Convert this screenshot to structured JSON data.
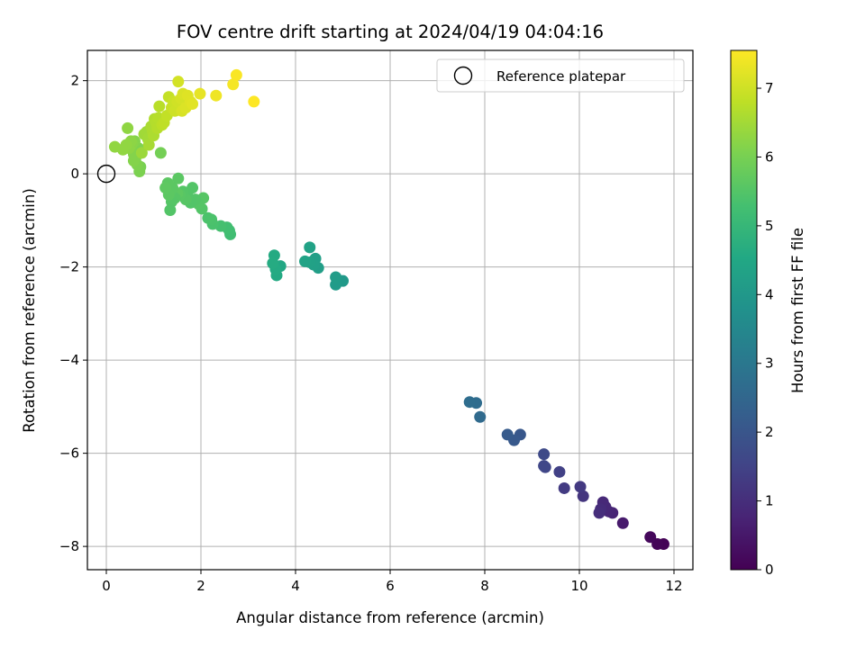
{
  "chart_data": {
    "type": "scatter",
    "title": "FOV centre drift starting at 2024/04/19 04:04:16",
    "xlabel": "Angular distance from reference (arcmin)",
    "ylabel": "Rotation from reference (arcmin)",
    "xlim": [
      -0.4,
      12.4
    ],
    "ylim": [
      -8.5,
      2.65
    ],
    "xticks": [
      0,
      2,
      4,
      6,
      8,
      10,
      12
    ],
    "yticks": [
      2,
      0,
      -2,
      -4,
      -6,
      -8
    ],
    "xtick_labels": [
      "0",
      "2",
      "4",
      "6",
      "8",
      "10",
      "12"
    ],
    "ytick_labels": [
      "2",
      "0",
      "−2",
      "−4",
      "−6",
      "−8"
    ],
    "grid": true,
    "legend": {
      "label": "Reference platepar",
      "placement": "top-right"
    },
    "reference_point": {
      "x": 0,
      "y": 0
    },
    "colorbar": {
      "label": "Hours from first FF file",
      "min": 0,
      "max": 7.55,
      "ticks": [
        0,
        1,
        2,
        3,
        4,
        5,
        6,
        7
      ],
      "tick_labels": [
        "0",
        "1",
        "2",
        "3",
        "4",
        "5",
        "6",
        "7"
      ],
      "colormap": "viridis"
    },
    "series": [
      {
        "x": [
          11.78,
          11.65,
          11.5,
          10.92,
          10.7,
          10.62,
          10.55,
          10.5,
          10.45,
          10.42,
          10.08,
          10.02,
          9.68,
          9.58,
          9.28,
          9.25,
          9.25,
          8.75,
          8.62,
          8.48,
          7.9,
          7.82,
          7.68,
          5.0,
          4.85,
          4.85,
          4.48,
          4.42,
          4.38,
          4.3,
          4.3,
          4.2,
          3.68,
          3.6,
          3.58,
          3.55,
          3.52,
          2.62,
          2.6,
          2.55,
          2.42,
          2.25,
          2.22,
          2.15,
          2.05,
          2.02,
          1.95,
          1.88,
          1.82,
          1.78,
          1.72,
          1.68,
          1.62,
          1.55,
          1.52,
          1.5,
          1.45,
          1.4,
          1.38,
          1.35,
          1.32,
          1.3,
          1.25,
          1.15,
          0.72,
          0.7,
          0.68,
          0.65,
          0.62,
          0.6,
          0.58,
          0.58,
          0.55,
          0.52,
          0.48,
          0.45,
          0.42,
          0.35,
          0.18,
          0.75,
          0.8,
          0.85,
          0.88,
          0.9,
          0.95,
          0.98,
          1.0,
          1.02,
          1.05,
          1.08,
          1.1,
          1.12,
          1.18,
          1.22,
          1.28,
          1.32,
          1.38,
          1.42,
          1.45,
          1.5,
          1.52,
          1.58,
          1.6,
          1.62,
          1.68,
          1.72,
          1.78,
          1.82,
          1.98,
          2.32,
          2.68,
          2.75,
          3.12
        ],
        "y": [
          -7.95,
          -7.95,
          -7.8,
          -7.5,
          -7.28,
          -7.25,
          -7.15,
          -7.05,
          -7.2,
          -7.28,
          -6.92,
          -6.72,
          -6.75,
          -6.4,
          -6.3,
          -6.27,
          -6.02,
          -5.6,
          -5.72,
          -5.6,
          -5.22,
          -4.92,
          -4.9,
          -2.3,
          -2.38,
          -2.22,
          -2.02,
          -1.82,
          -1.95,
          -1.9,
          -1.58,
          -1.88,
          -1.98,
          -2.18,
          -2.05,
          -1.75,
          -1.92,
          -1.3,
          -1.22,
          -1.15,
          -1.12,
          -1.08,
          -0.98,
          -0.95,
          -0.52,
          -0.75,
          -0.65,
          -0.55,
          -0.3,
          -0.62,
          -0.48,
          -0.55,
          -0.38,
          -0.45,
          -0.1,
          -0.42,
          -0.52,
          -0.3,
          -0.6,
          -0.78,
          -0.45,
          -0.2,
          -0.3,
          0.45,
          0.15,
          0.05,
          0.55,
          0.2,
          0.35,
          0.7,
          0.28,
          0.42,
          0.65,
          0.7,
          0.55,
          0.98,
          0.62,
          0.52,
          0.58,
          0.45,
          0.85,
          0.9,
          0.75,
          0.62,
          1.02,
          0.92,
          0.82,
          1.18,
          1.1,
          0.98,
          1.2,
          1.45,
          1.05,
          1.1,
          1.25,
          1.65,
          1.42,
          1.55,
          1.35,
          1.55,
          1.98,
          1.62,
          1.35,
          1.72,
          1.42,
          1.68,
          1.55,
          1.5,
          1.72,
          1.68,
          1.92,
          2.12,
          1.55
        ],
        "hours": [
          0.05,
          0.08,
          0.15,
          0.55,
          0.75,
          0.8,
          0.85,
          0.88,
          0.95,
          1.0,
          1.15,
          1.25,
          1.3,
          1.45,
          1.55,
          1.6,
          1.68,
          2.05,
          2.1,
          2.15,
          2.6,
          2.65,
          2.7,
          4.05,
          4.1,
          4.12,
          4.2,
          4.25,
          4.28,
          4.3,
          4.32,
          4.35,
          4.5,
          4.55,
          4.58,
          4.6,
          4.62,
          5.2,
          5.22,
          5.25,
          5.3,
          5.35,
          5.38,
          5.4,
          5.55,
          5.5,
          5.52,
          5.5,
          5.5,
          5.48,
          5.5,
          5.55,
          5.52,
          5.58,
          5.6,
          5.65,
          5.55,
          5.6,
          5.52,
          5.5,
          5.62,
          5.62,
          5.65,
          5.95,
          6.0,
          6.05,
          6.08,
          6.1,
          6.12,
          6.15,
          6.15,
          6.15,
          6.2,
          6.25,
          6.25,
          6.28,
          6.3,
          6.3,
          6.3,
          6.42,
          6.45,
          6.48,
          6.5,
          6.55,
          6.58,
          6.6,
          6.62,
          6.65,
          6.68,
          6.7,
          6.72,
          6.75,
          6.78,
          6.82,
          6.85,
          6.88,
          6.92,
          6.95,
          6.98,
          7.02,
          7.05,
          7.08,
          7.1,
          7.12,
          7.15,
          7.18,
          7.2,
          7.22,
          7.28,
          7.38,
          7.45,
          7.5,
          7.55
        ]
      }
    ]
  }
}
